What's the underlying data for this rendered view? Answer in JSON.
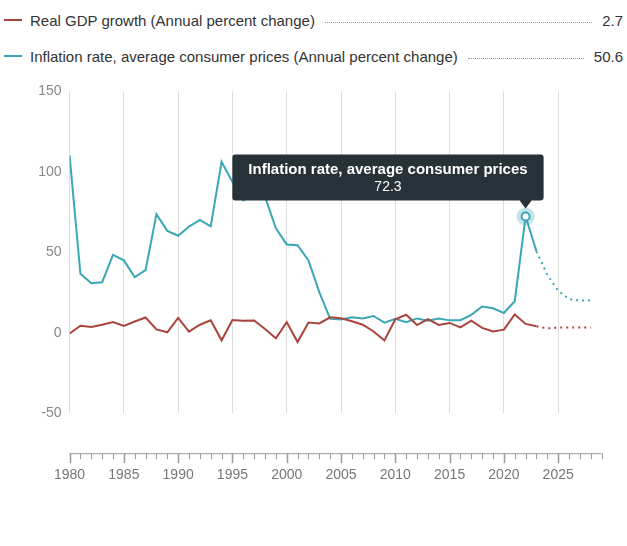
{
  "chart_data": {
    "type": "line",
    "x": [
      1980,
      1981,
      1982,
      1983,
      1984,
      1985,
      1986,
      1987,
      1988,
      1989,
      1990,
      1991,
      1992,
      1993,
      1994,
      1995,
      1996,
      1997,
      1998,
      1999,
      2000,
      2001,
      2002,
      2003,
      2004,
      2005,
      2006,
      2007,
      2008,
      2009,
      2010,
      2011,
      2012,
      2013,
      2014,
      2015,
      2016,
      2017,
      2018,
      2019,
      2020,
      2021,
      2022,
      2023,
      2024,
      2025,
      2026,
      2027,
      2028
    ],
    "series": [
      {
        "name": "Real GDP growth (Annual percent change)",
        "color": "#a9443f",
        "line_style": "solid",
        "marker": "none",
        "legend_value": 2.7,
        "values": [
          -0.5,
          4.4,
          3.6,
          5.0,
          6.7,
          4.2,
          7.0,
          9.5,
          2.1,
          0.3,
          9.3,
          0.7,
          5.0,
          7.7,
          -4.7,
          7.9,
          7.4,
          7.6,
          2.3,
          -3.4,
          6.6,
          -5.8,
          6.4,
          5.8,
          9.6,
          9.0,
          7.1,
          5.0,
          0.8,
          -4.8,
          8.4,
          11.2,
          4.8,
          8.5,
          4.9,
          6.1,
          3.3,
          7.5,
          3.0,
          0.8,
          1.9,
          11.4,
          5.5,
          4.0,
          null,
          null,
          null,
          null,
          null
        ],
        "projection": {
          "line_style": "dotted",
          "values": [
            null,
            null,
            null,
            null,
            null,
            null,
            null,
            null,
            null,
            null,
            null,
            null,
            null,
            null,
            null,
            null,
            null,
            null,
            null,
            null,
            null,
            null,
            null,
            null,
            null,
            null,
            null,
            null,
            null,
            null,
            null,
            null,
            null,
            null,
            null,
            null,
            null,
            null,
            null,
            null,
            null,
            null,
            null,
            4.0,
            2.7,
            3.2,
            3.3,
            3.3,
            3.3
          ]
        }
      },
      {
        "name": "Inflation rate, average consumer prices (Annual percent change)",
        "color": "#3ba7b5",
        "line_style": "solid",
        "marker": "none",
        "legend_value": 50.6,
        "values": [
          110.2,
          36.6,
          30.8,
          31.4,
          48.4,
          45.0,
          34.6,
          38.9,
          73.7,
          63.3,
          60.3,
          66.0,
          70.1,
          66.1,
          106.3,
          93.7,
          82.3,
          85.7,
          84.6,
          64.9,
          54.9,
          54.4,
          45.0,
          25.3,
          8.6,
          8.2,
          9.6,
          8.8,
          10.4,
          6.3,
          8.6,
          6.5,
          8.9,
          7.5,
          8.9,
          7.7,
          7.8,
          11.1,
          16.3,
          15.2,
          12.3,
          19.6,
          72.3,
          50.6,
          null,
          null,
          null,
          null,
          null
        ],
        "projection": {
          "line_style": "dotted",
          "values": [
            null,
            null,
            null,
            null,
            null,
            null,
            null,
            null,
            null,
            null,
            null,
            null,
            null,
            null,
            null,
            null,
            null,
            null,
            null,
            null,
            null,
            null,
            null,
            null,
            null,
            null,
            null,
            null,
            null,
            null,
            null,
            null,
            null,
            null,
            null,
            null,
            null,
            null,
            null,
            null,
            null,
            null,
            null,
            50.6,
            36,
            26,
            21,
            20,
            20
          ]
        }
      }
    ],
    "annotations": [
      {
        "text": "Inflation rate, average consumer prices",
        "x": 2022,
        "value": 72.3
      }
    ],
    "xlim": [
      1980,
      2029
    ],
    "xticks": [
      1980,
      1985,
      1990,
      1995,
      2000,
      2005,
      2010,
      2015,
      2020,
      2025
    ],
    "ylim": [
      -50,
      150
    ],
    "yticks": [
      -50,
      0,
      50,
      100,
      150
    ],
    "grid": "x",
    "legend": "top"
  }
}
